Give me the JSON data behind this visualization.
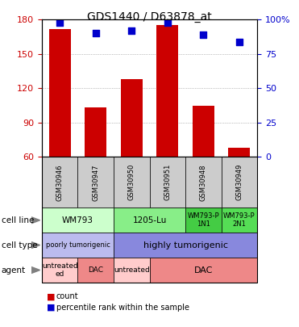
{
  "title": "GDS1440 / D63878_at",
  "samples": [
    "GSM30946",
    "GSM30947",
    "GSM30950",
    "GSM30951",
    "GSM30948",
    "GSM30949"
  ],
  "counts": [
    172,
    103,
    128,
    175,
    105,
    68
  ],
  "percentiles": [
    98,
    90,
    92,
    98,
    89,
    84
  ],
  "ylim_left": [
    60,
    180
  ],
  "ylim_right": [
    0,
    100
  ],
  "yticks_left": [
    60,
    90,
    120,
    150,
    180
  ],
  "yticks_right": [
    0,
    25,
    50,
    75,
    100
  ],
  "bar_color": "#cc0000",
  "dot_color": "#0000cc",
  "cell_line_data": [
    {
      "label": "WM793",
      "span": [
        0,
        2
      ],
      "color": "#ccffcc"
    },
    {
      "label": "1205-Lu",
      "span": [
        2,
        4
      ],
      "color": "#88ee88"
    },
    {
      "label": "WM793-P\n1N1",
      "span": [
        4,
        5
      ],
      "color": "#44cc44"
    },
    {
      "label": "WM793-P\n2N1",
      "span": [
        5,
        6
      ],
      "color": "#55dd55"
    }
  ],
  "cell_type_data": [
    {
      "label": "poorly tumorigenic",
      "span": [
        0,
        2
      ],
      "color": "#bbbbee"
    },
    {
      "label": "highly tumorigenic",
      "span": [
        2,
        6
      ],
      "color": "#8888dd"
    }
  ],
  "agent_data": [
    {
      "label": "untreated\ned",
      "span": [
        0,
        1
      ],
      "color": "#ffcccc"
    },
    {
      "label": "DAC",
      "span": [
        1,
        2
      ],
      "color": "#ee8888"
    },
    {
      "label": "untreated",
      "span": [
        2,
        3
      ],
      "color": "#ffcccc"
    },
    {
      "label": "DAC",
      "span": [
        3,
        6
      ],
      "color": "#ee8888"
    }
  ],
  "row_labels": [
    "cell line",
    "cell type",
    "agent"
  ],
  "legend_items": [
    {
      "color": "#cc0000",
      "label": "count"
    },
    {
      "color": "#0000cc",
      "label": "percentile rank within the sample"
    }
  ],
  "grid_color": "#888888",
  "sample_box_color": "#cccccc",
  "left_label_color": "#cc0000",
  "right_label_color": "#0000cc"
}
